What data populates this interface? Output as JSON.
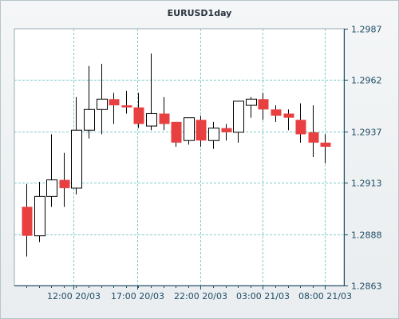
{
  "chart_data": {
    "type": "candlestick",
    "title": "EURUSD1day",
    "ylim": [
      1.2863,
      1.2987
    ],
    "yticks": [
      "1.2987",
      "1.2962",
      "1.2937",
      "1.2913",
      "1.2888",
      "1.2863"
    ],
    "xticks": [
      "12:00 20/03",
      "17:00 20/03",
      "22:00 20/03",
      "03:00 21/03",
      "08:00 21/03"
    ],
    "xtick_indices": [
      3.8,
      8.9,
      14.0,
      19.0,
      24.0
    ],
    "grid": true,
    "colors": {
      "up_body": "#ffffff",
      "down_body": "#e84040",
      "outline": "#000000",
      "grid": "#80cccc",
      "axis": "#1f4c66"
    },
    "candles": [
      {
        "open": 1.2901,
        "high": 1.2912,
        "low": 1.2877,
        "close": 1.2887
      },
      {
        "open": 1.2887,
        "high": 1.2913,
        "low": 1.2884,
        "close": 1.2906
      },
      {
        "open": 1.2906,
        "high": 1.2936,
        "low": 1.2901,
        "close": 1.2914
      },
      {
        "open": 1.2914,
        "high": 1.2927,
        "low": 1.2901,
        "close": 1.291
      },
      {
        "open": 1.291,
        "high": 1.2954,
        "low": 1.2907,
        "close": 1.2938
      },
      {
        "open": 1.2938,
        "high": 1.2969,
        "low": 1.2934,
        "close": 1.2948
      },
      {
        "open": 1.2948,
        "high": 1.297,
        "low": 1.2936,
        "close": 1.2953
      },
      {
        "open": 1.2953,
        "high": 1.2956,
        "low": 1.2941,
        "close": 1.295
      },
      {
        "open": 1.295,
        "high": 1.2957,
        "low": 1.2946,
        "close": 1.2949
      },
      {
        "open": 1.2949,
        "high": 1.2956,
        "low": 1.2939,
        "close": 1.2941
      },
      {
        "open": 1.294,
        "high": 1.2975,
        "low": 1.2938,
        "close": 1.2946
      },
      {
        "open": 1.2946,
        "high": 1.2954,
        "low": 1.2938,
        "close": 1.2941
      },
      {
        "open": 1.2942,
        "high": 1.2942,
        "low": 1.293,
        "close": 1.2932
      },
      {
        "open": 1.2933,
        "high": 1.2944,
        "low": 1.2931,
        "close": 1.2944
      },
      {
        "open": 1.2943,
        "high": 1.2945,
        "low": 1.293,
        "close": 1.2933
      },
      {
        "open": 1.2933,
        "high": 1.2942,
        "low": 1.2929,
        "close": 1.2939
      },
      {
        "open": 1.2939,
        "high": 1.2941,
        "low": 1.2933,
        "close": 1.2937
      },
      {
        "open": 1.2937,
        "high": 1.2952,
        "low": 1.2932,
        "close": 1.2952
      },
      {
        "open": 1.295,
        "high": 1.2954,
        "low": 1.2944,
        "close": 1.2953
      },
      {
        "open": 1.2953,
        "high": 1.2956,
        "low": 1.2943,
        "close": 1.2948
      },
      {
        "open": 1.2948,
        "high": 1.295,
        "low": 1.2942,
        "close": 1.2945
      },
      {
        "open": 1.2946,
        "high": 1.2948,
        "low": 1.2938,
        "close": 1.2944
      },
      {
        "open": 1.2943,
        "high": 1.2951,
        "low": 1.2932,
        "close": 1.2936
      },
      {
        "open": 1.2937,
        "high": 1.295,
        "low": 1.2925,
        "close": 1.2932
      },
      {
        "open": 1.2932,
        "high": 1.2936,
        "low": 1.2922,
        "close": 1.293
      }
    ]
  }
}
